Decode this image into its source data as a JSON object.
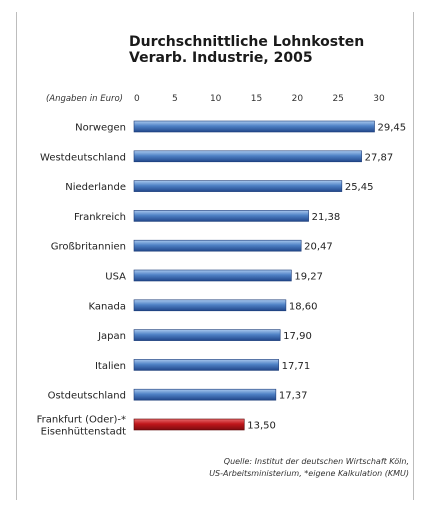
{
  "chart_data": {
    "type": "bar",
    "orientation": "horizontal",
    "title_lines": [
      "Durchschnittliche Lohnkosten",
      "Verarb. Industrie, 2005"
    ],
    "unit_note": "(Angaben in Euro)",
    "xlim": [
      0,
      30
    ],
    "ticks": [
      "0",
      "5",
      "10",
      "15",
      "20",
      "25",
      "30"
    ],
    "tick_values": [
      0,
      5,
      10,
      15,
      20,
      25,
      30
    ],
    "categories": [
      [
        "Norwegen"
      ],
      [
        "Westdeutschland"
      ],
      [
        "Niederlande"
      ],
      [
        "Frankreich"
      ],
      [
        "Großbritannien"
      ],
      [
        "USA"
      ],
      [
        "Kanada"
      ],
      [
        "Japan"
      ],
      [
        "Italien"
      ],
      [
        "Ostdeutschland"
      ],
      [
        "Frankfurt (Oder)-*",
        "Eisenhüttenstadt"
      ]
    ],
    "values": [
      29.45,
      27.87,
      25.45,
      21.38,
      20.47,
      19.27,
      18.6,
      17.9,
      17.71,
      17.37,
      13.5
    ],
    "value_labels": [
      "29,45",
      "27,87",
      "25,45",
      "21,38",
      "20,47",
      "19,27",
      "18,60",
      "17,90",
      "17,71",
      "17,37",
      "13,50"
    ],
    "highlight_index": 10,
    "colors": {
      "bar": "#3d6fb6",
      "bar_highlight": "#c0161b",
      "text": "#222222"
    },
    "grid": false,
    "legend": "none",
    "source_lines": [
      "Quelle:  Institut der deutschen Wirtschaft Köln,",
      "US-Arbeitsministerium, *eigene Kalkulation (KMU)"
    ]
  }
}
